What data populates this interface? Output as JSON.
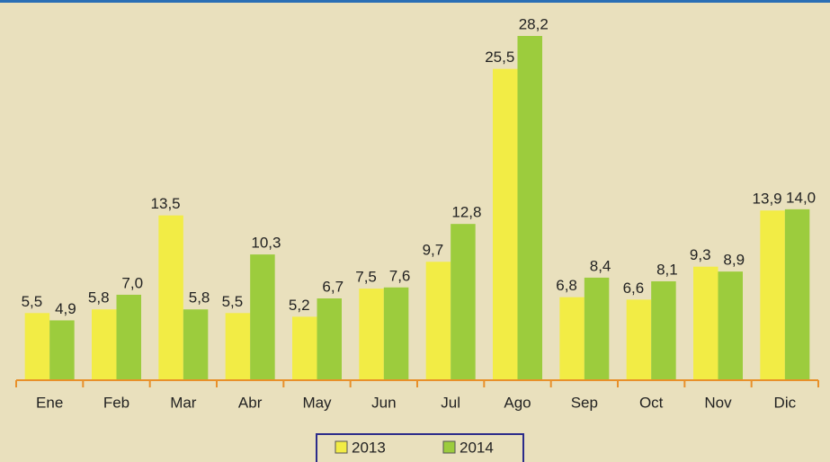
{
  "chart_data": {
    "type": "bar",
    "categories": [
      "Ene",
      "Feb",
      "Mar",
      "Abr",
      "May",
      "Jun",
      "Jul",
      "Ago",
      "Sep",
      "Oct",
      "Nov",
      "Dic"
    ],
    "series": [
      {
        "name": "2013",
        "color": "#f2ec45",
        "values": [
          5.5,
          5.8,
          13.5,
          5.5,
          5.2,
          7.5,
          9.7,
          25.5,
          6.8,
          6.6,
          9.3,
          13.9
        ],
        "value_labels": [
          "5,5",
          "5,8",
          "13,5",
          "5,5",
          "5,2",
          "7,5",
          "9,7",
          "25,5",
          "6,8",
          "6,6",
          "9,3",
          "13,9"
        ]
      },
      {
        "name": "2014",
        "color": "#9ccc3d",
        "values": [
          4.9,
          7.0,
          5.8,
          10.3,
          6.7,
          7.6,
          12.8,
          28.2,
          8.4,
          8.1,
          8.9,
          14.0
        ],
        "value_labels": [
          "4,9",
          "7,0",
          "5,8",
          "10,3",
          "6,7",
          "7,6",
          "12,8",
          "28,2",
          "8,4",
          "8,1",
          "8,9",
          "14,0"
        ]
      }
    ],
    "legend": "bottom"
  }
}
